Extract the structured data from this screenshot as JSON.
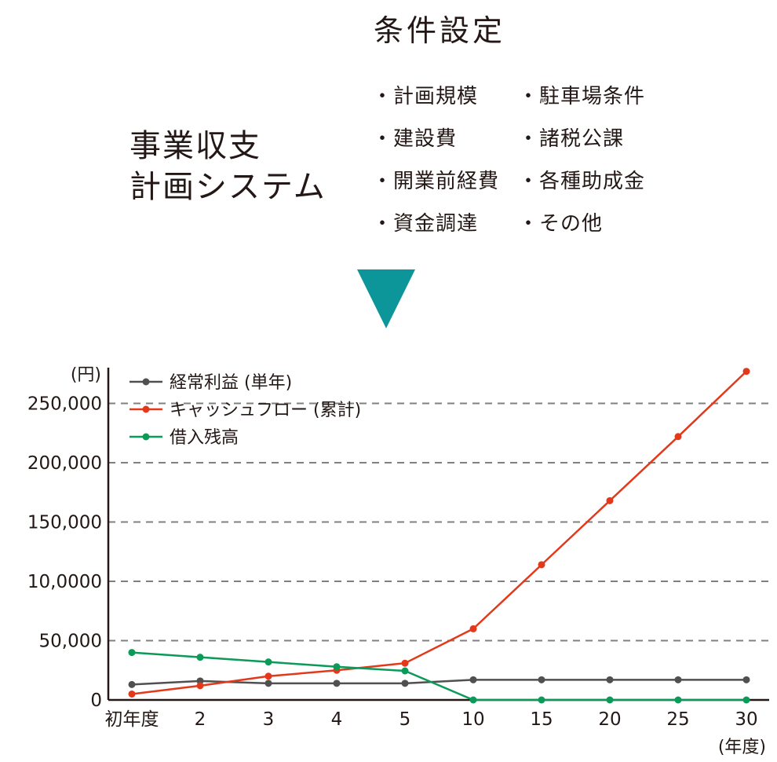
{
  "header": {
    "title": "条件設定"
  },
  "system_name": {
    "line1": "事業収支",
    "line2": "計画システム"
  },
  "conditions": {
    "column1": [
      "計画規模",
      "建設費",
      "開業前経費",
      "資金調達"
    ],
    "column2": [
      "駐車場条件",
      "諸税公課",
      "各種助成金",
      "その他"
    ]
  },
  "colors": {
    "arrow": "#0d9699",
    "series": [
      "#505050",
      "#e3391a",
      "#0c9a59"
    ],
    "grid": "#808080",
    "axis": "#231815"
  },
  "chart_data": {
    "type": "line",
    "categories": [
      "初年度",
      "2",
      "3",
      "4",
      "5",
      "10",
      "15",
      "20",
      "25",
      "30"
    ],
    "series": [
      {
        "name": "経常利益 (単年)",
        "values": [
          13000,
          16000,
          14000,
          14000,
          14000,
          17000,
          17000,
          17000,
          17000,
          17000
        ]
      },
      {
        "name": "キャッシュフロー (累計)",
        "values": [
          5000,
          12000,
          20000,
          25000,
          31000,
          60000,
          114000,
          168000,
          222000,
          277000
        ]
      },
      {
        "name": "借入残高",
        "values": [
          40000,
          36000,
          32000,
          28000,
          24500,
          0,
          0,
          0,
          0,
          0
        ]
      }
    ],
    "y_ticks": [
      0,
      50000,
      100000,
      150000,
      200000,
      250000
    ],
    "y_tick_labels": [
      "0",
      "50,000",
      "10,0000",
      "150,000",
      "200,000",
      "250,000"
    ],
    "ylim": [
      0,
      280000
    ],
    "y_unit": "(円)",
    "x_unit": "(年度)",
    "grid": "horizontal dashed",
    "legend_position": "top-left"
  }
}
